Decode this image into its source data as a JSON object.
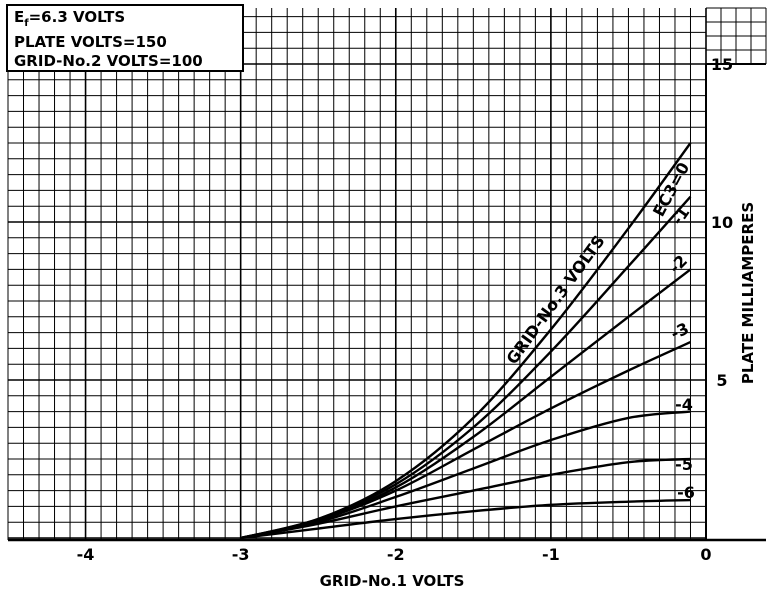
{
  "chart_data": {
    "type": "line",
    "conditions": [
      "=6.3 VOLTS",
      "PLATE VOLTS=150",
      "GRID-No.2 VOLTS=100"
    ],
    "conditions_symbol": "E",
    "conditions_symbol_sub": "f",
    "xlabel": "GRID-No.1 VOLTS",
    "ylabel": "PLATE MILLIAMPERES",
    "xlim": [
      -4.5,
      0.35
    ],
    "ylim": [
      -0.3,
      17
    ],
    "x_ticks": [
      {
        "value": -4,
        "label": "-4"
      },
      {
        "value": -3,
        "label": "-3"
      },
      {
        "value": -2,
        "label": "-2"
      },
      {
        "value": -1,
        "label": "-1"
      },
      {
        "value": 0,
        "label": "0"
      }
    ],
    "y_ticks": [
      {
        "value": 5,
        "label": "5"
      },
      {
        "value": 10,
        "label": "10"
      },
      {
        "value": 15,
        "label": "15"
      }
    ],
    "family_label": "GRID-No.3 VOLTS",
    "grid": true,
    "series": [
      {
        "name": "EC3=0",
        "x": [
          -3.0,
          -2.5,
          -2.0,
          -1.5,
          -1.0,
          -0.5,
          -0.1
        ],
        "y": [
          0,
          0.6,
          1.8,
          3.8,
          6.6,
          9.8,
          12.5
        ]
      },
      {
        "name": "-1",
        "x": [
          -3.0,
          -2.5,
          -2.0,
          -1.5,
          -1.0,
          -0.5,
          -0.1
        ],
        "y": [
          0,
          0.6,
          1.7,
          3.5,
          5.9,
          8.6,
          10.8
        ]
      },
      {
        "name": "-2",
        "x": [
          -3.0,
          -2.5,
          -2.0,
          -1.5,
          -1.0,
          -0.5,
          -0.1
        ],
        "y": [
          0,
          0.55,
          1.6,
          3.2,
          5.1,
          7.0,
          8.5
        ]
      },
      {
        "name": "-3",
        "x": [
          -3.0,
          -2.5,
          -2.0,
          -1.5,
          -1.0,
          -0.5,
          -0.1
        ],
        "y": [
          0,
          0.55,
          1.5,
          2.8,
          4.1,
          5.3,
          6.2
        ]
      },
      {
        "name": "-4",
        "x": [
          -3.0,
          -2.5,
          -2.0,
          -1.5,
          -1.0,
          -0.5,
          -0.1
        ],
        "y": [
          0,
          0.5,
          1.3,
          2.2,
          3.1,
          3.8,
          4.0
        ]
      },
      {
        "name": "-5",
        "x": [
          -3.0,
          -2.5,
          -2.0,
          -1.5,
          -1.0,
          -0.5,
          -0.1
        ],
        "y": [
          0,
          0.45,
          1.0,
          1.5,
          2.0,
          2.4,
          2.5
        ]
      },
      {
        "name": "-6",
        "x": [
          -3.0,
          -2.5,
          -2.0,
          -1.5,
          -1.0,
          -0.5,
          -0.1
        ],
        "y": [
          0,
          0.3,
          0.6,
          0.85,
          1.05,
          1.15,
          1.2
        ]
      }
    ]
  }
}
